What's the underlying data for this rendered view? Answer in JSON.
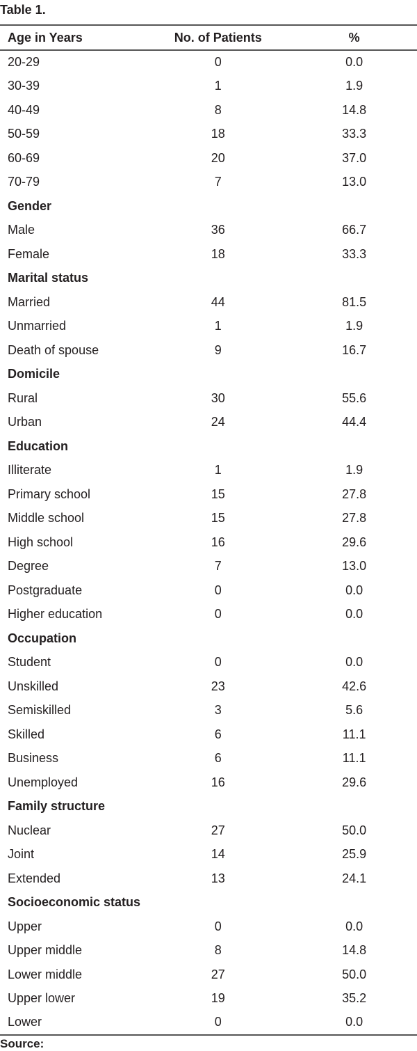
{
  "title": "Table 1.",
  "headers": [
    "Age in Years",
    "No. of Patients",
    "%"
  ],
  "rows": [
    {
      "label": "20-29",
      "n": "0",
      "pct": "0.0"
    },
    {
      "label": "30-39",
      "n": "1",
      "pct": "1.9"
    },
    {
      "label": "40-49",
      "n": "8",
      "pct": "14.8"
    },
    {
      "label": "50-59",
      "n": "18",
      "pct": "33.3"
    },
    {
      "label": "60-69",
      "n": "20",
      "pct": "37.0"
    },
    {
      "label": "70-79",
      "n": "7",
      "pct": "13.0"
    },
    {
      "section": "Gender"
    },
    {
      "label": "Male",
      "n": "36",
      "pct": "66.7"
    },
    {
      "label": "Female",
      "n": "18",
      "pct": "33.3"
    },
    {
      "section": "Marital status"
    },
    {
      "label": "Married",
      "n": "44",
      "pct": "81.5"
    },
    {
      "label": "Unmarried",
      "n": "1",
      "pct": "1.9"
    },
    {
      "label": "Death of spouse",
      "n": "9",
      "pct": "16.7"
    },
    {
      "section": "Domicile"
    },
    {
      "label": "Rural",
      "n": "30",
      "pct": "55.6"
    },
    {
      "label": "Urban",
      "n": "24",
      "pct": "44.4"
    },
    {
      "section": "Education"
    },
    {
      "label": "Illiterate",
      "n": "1",
      "pct": "1.9"
    },
    {
      "label": "Primary school",
      "n": "15",
      "pct": "27.8"
    },
    {
      "label": "Middle school",
      "n": "15",
      "pct": "27.8"
    },
    {
      "label": "High school",
      "n": "16",
      "pct": "29.6"
    },
    {
      "label": "Degree",
      "n": "7",
      "pct": "13.0"
    },
    {
      "label": "Postgraduate",
      "n": "0",
      "pct": "0.0"
    },
    {
      "label": "Higher education",
      "n": "0",
      "pct": "0.0"
    },
    {
      "section": "Occupation"
    },
    {
      "label": "Student",
      "n": "0",
      "pct": "0.0"
    },
    {
      "label": "Unskilled",
      "n": "23",
      "pct": "42.6"
    },
    {
      "label": "Semiskilled",
      "n": "3",
      "pct": "5.6"
    },
    {
      "label": "Skilled",
      "n": "6",
      "pct": "11.1"
    },
    {
      "label": "Business",
      "n": "6",
      "pct": "11.1"
    },
    {
      "label": "Unemployed",
      "n": "16",
      "pct": "29.6"
    },
    {
      "section": "Family structure"
    },
    {
      "label": "Nuclear",
      "n": "27",
      "pct": "50.0"
    },
    {
      "label": "Joint",
      "n": "14",
      "pct": "25.9"
    },
    {
      "label": "Extended",
      "n": "13",
      "pct": "24.1"
    },
    {
      "section": "Socioeconomic status"
    },
    {
      "label": "Upper",
      "n": "0",
      "pct": "0.0"
    },
    {
      "label": "Upper middle",
      "n": "8",
      "pct": "14.8"
    },
    {
      "label": "Lower middle",
      "n": "27",
      "pct": "50.0"
    },
    {
      "label": "Upper lower",
      "n": "19",
      "pct": "35.2"
    },
    {
      "label": "Lower",
      "n": "0",
      "pct": "0.0"
    }
  ],
  "source_label": "Source:"
}
